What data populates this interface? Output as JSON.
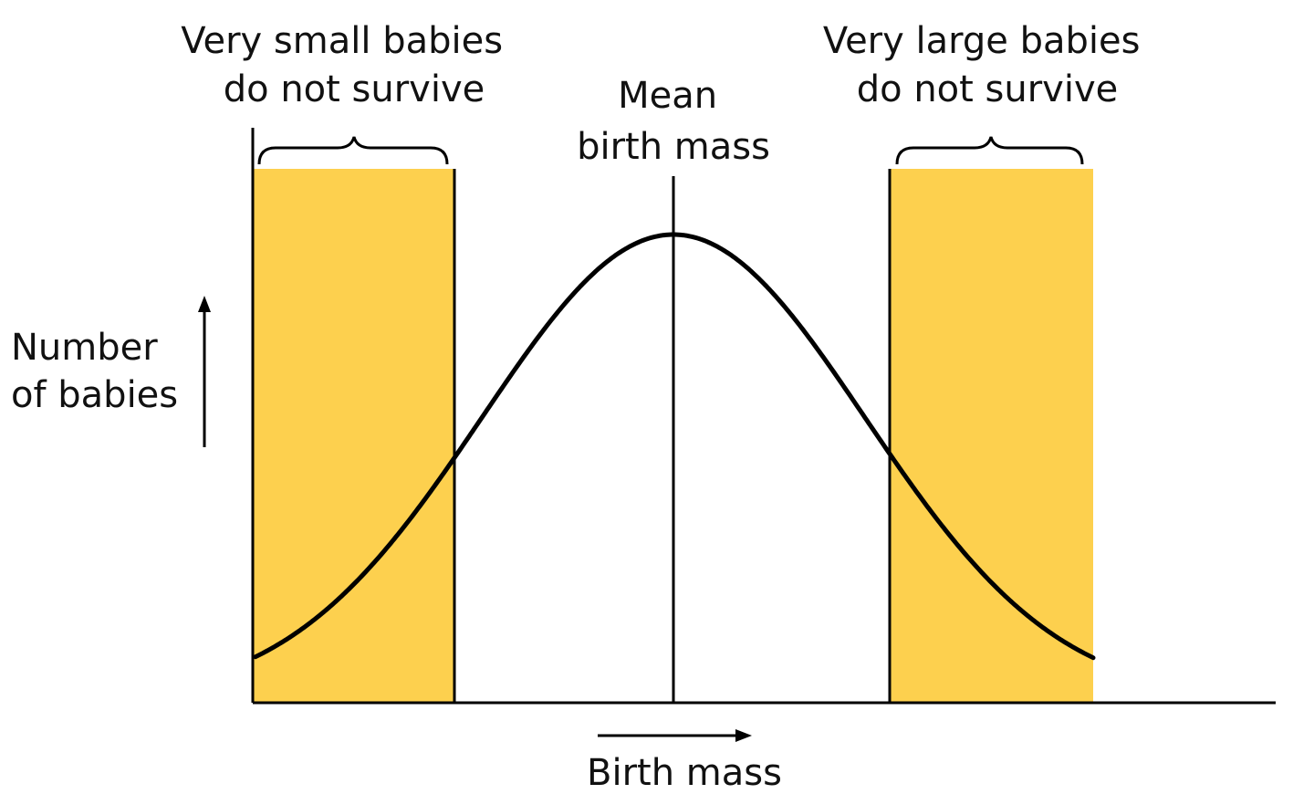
{
  "labels": {
    "left_region": [
      "Very small babies",
      "do not survive"
    ],
    "right_region": [
      "Very large babies",
      "do not survive"
    ],
    "mean": [
      "Mean",
      "birth mass"
    ],
    "y_axis": [
      "Number",
      "of babies"
    ],
    "x_axis": "Birth mass"
  },
  "colors": {
    "shaded_region": "#fdd04e",
    "line": "#000000",
    "background": "#ffffff"
  },
  "curve": {
    "shape": "normal distribution",
    "shaded_tails": [
      "left",
      "right"
    ]
  }
}
